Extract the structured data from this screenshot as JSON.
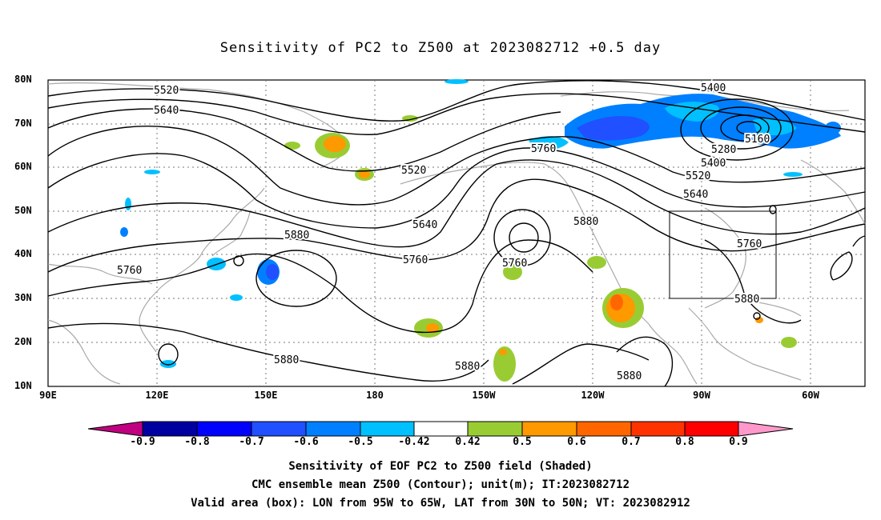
{
  "title": "Sensitivity of PC2 to Z500 at 2023082712 +0.5 day",
  "lat_labels": [
    "80N",
    "70N",
    "60N",
    "50N",
    "40N",
    "30N",
    "20N",
    "10N"
  ],
  "lon_labels": [
    "90E",
    "120E",
    "150E",
    "180",
    "150W",
    "120W",
    "90W",
    "60W"
  ],
  "contour_labels": [
    "5400",
    "5520",
    "5640",
    "5160",
    "5280",
    "5400",
    "5520",
    "5640",
    "5760",
    "5520",
    "5640",
    "5880",
    "5760",
    "5760",
    "5760",
    "5880",
    "5760",
    "5880",
    "5880",
    "5880",
    "5880"
  ],
  "colorbar": {
    "labels": [
      "-0.9",
      "-0.8",
      "-0.7",
      "-0.6",
      "-0.5",
      "-0.42",
      "0.42",
      "0.5",
      "0.6",
      "0.7",
      "0.8",
      "0.9"
    ],
    "colors": [
      "#c00080",
      "#0000a0",
      "#0000ff",
      "#2050ff",
      "#0080ff",
      "#00c0ff",
      "#ffffff",
      "#99cc33",
      "#ff9900",
      "#ff6600",
      "#ff3300",
      "#ff0000",
      "#ff99cc"
    ]
  },
  "captions": [
    "Sensitivity of EOF PC2 to Z500 field (Shaded)",
    "CMC ensemble mean Z500 (Contour); unit(m); IT:2023082712",
    "Valid area (box): LON from 95W to 65W, LAT from 30N to 50N; VT: 2023082912"
  ]
}
